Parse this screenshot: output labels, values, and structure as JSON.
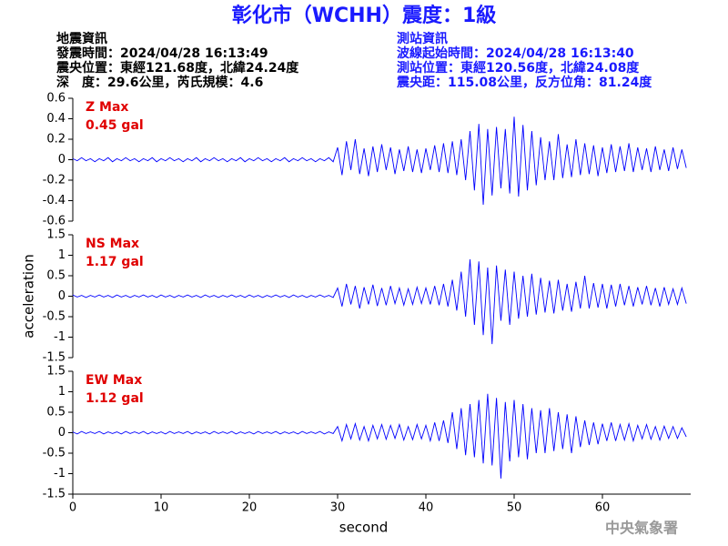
{
  "header": {
    "title": "彰化市（WCHH）震度：1級",
    "left": [
      "地震資訊",
      "發震時間：2024/04/28 16:13:49",
      "震央位置：東經121.68度，北緯24.24度",
      "深　度：29.6公里，芮氏規模：4.6"
    ],
    "right": [
      "測站資訊",
      "波線起始時間：2024/04/28 16:13:40",
      "測站位置：東經120.56度，北緯24.08度",
      "震央距：115.08公里，反方位角：81.24度"
    ]
  },
  "agency": "中央氣象署",
  "chart_data": [
    {
      "type": "line",
      "annotation": [
        "Z Max",
        "0.45 gal"
      ],
      "x": [
        0,
        0.5,
        1,
        1.5,
        2,
        2.5,
        3,
        3.5,
        4,
        4.5,
        5,
        5.5,
        6,
        6.5,
        7,
        7.5,
        8,
        8.5,
        9,
        9.5,
        10,
        10.5,
        11,
        11.5,
        12,
        12.5,
        13,
        13.5,
        14,
        14.5,
        15,
        15.5,
        16,
        16.5,
        17,
        17.5,
        18,
        18.5,
        19,
        19.5,
        20,
        20.5,
        21,
        21.5,
        22,
        22.5,
        23,
        23.5,
        24,
        24.5,
        25,
        25.5,
        26,
        26.5,
        27,
        27.5,
        28,
        28.5,
        29,
        29.5,
        30,
        30.5,
        31,
        31.5,
        32,
        32.5,
        33,
        33.5,
        34,
        34.5,
        35,
        35.5,
        36,
        36.5,
        37,
        37.5,
        38,
        38.5,
        39,
        39.5,
        40,
        40.5,
        41,
        41.5,
        42,
        42.5,
        43,
        43.5,
        44,
        44.5,
        45,
        45.5,
        46,
        46.5,
        47,
        47.5,
        48,
        48.5,
        49,
        49.5,
        50,
        50.5,
        51,
        51.5,
        52,
        52.5,
        53,
        53.5,
        54,
        54.5,
        55,
        55.5,
        56,
        56.5,
        57,
        57.5,
        58,
        58.5,
        59,
        59.5,
        60,
        60.5,
        61,
        61.5,
        62,
        62.5,
        63,
        63.5,
        64,
        64.5,
        65,
        65.5,
        66,
        66.5,
        67,
        67.5,
        68,
        68.5,
        69,
        69.5
      ],
      "series": [
        {
          "color": "#0000ff",
          "values": [
            0.01,
            -0.01,
            0.02,
            -0.01,
            0.01,
            -0.02,
            0.01,
            -0.01,
            0.02,
            -0.02,
            0.01,
            -0.01,
            0.02,
            -0.01,
            0.01,
            -0.02,
            0.01,
            -0.01,
            0.02,
            -0.02,
            0.01,
            -0.01,
            0.02,
            -0.01,
            0.01,
            -0.02,
            0.01,
            -0.01,
            0.02,
            -0.02,
            0.01,
            -0.01,
            0.02,
            -0.01,
            0.01,
            -0.02,
            0.01,
            -0.01,
            0.02,
            -0.02,
            0.01,
            -0.01,
            0.02,
            -0.01,
            0.01,
            -0.02,
            0.01,
            -0.01,
            0.02,
            -0.02,
            0.01,
            -0.01,
            0.02,
            -0.01,
            0.01,
            -0.02,
            0.01,
            -0.01,
            0.02,
            -0.02,
            0.12,
            -0.15,
            0.18,
            -0.1,
            0.2,
            -0.14,
            0.11,
            -0.16,
            0.13,
            -0.12,
            0.15,
            -0.1,
            0.12,
            -0.14,
            0.1,
            -0.11,
            0.13,
            -0.12,
            0.1,
            -0.13,
            0.11,
            -0.1,
            0.14,
            -0.12,
            0.16,
            -0.13,
            0.18,
            -0.15,
            0.2,
            -0.2,
            0.28,
            -0.3,
            0.35,
            -0.44,
            0.3,
            -0.35,
            0.32,
            -0.28,
            0.3,
            -0.33,
            0.42,
            -0.36,
            0.34,
            -0.3,
            0.28,
            -0.25,
            0.22,
            -0.2,
            0.18,
            -0.2,
            0.25,
            -0.18,
            0.15,
            -0.17,
            0.2,
            -0.15,
            0.16,
            -0.14,
            0.14,
            -0.16,
            0.12,
            -0.13,
            0.15,
            -0.12,
            0.13,
            -0.11,
            0.16,
            -0.12,
            0.12,
            -0.1,
            0.11,
            -0.12,
            0.13,
            -0.1,
            0.1,
            -0.11,
            0.12,
            -0.09,
            0.1,
            -0.08
          ]
        }
      ],
      "xlim": [
        0,
        70
      ],
      "ylim": [
        -0.6,
        0.6
      ],
      "yticks": [
        0.6,
        0.4,
        0.2,
        0,
        -0.2,
        -0.4,
        -0.6
      ]
    },
    {
      "type": "line",
      "annotation": [
        "NS Max",
        "1.17 gal"
      ],
      "ylabel": "acceleration",
      "x": [
        0,
        0.5,
        1,
        1.5,
        2,
        2.5,
        3,
        3.5,
        4,
        4.5,
        5,
        5.5,
        6,
        6.5,
        7,
        7.5,
        8,
        8.5,
        9,
        9.5,
        10,
        10.5,
        11,
        11.5,
        12,
        12.5,
        13,
        13.5,
        14,
        14.5,
        15,
        15.5,
        16,
        16.5,
        17,
        17.5,
        18,
        18.5,
        19,
        19.5,
        20,
        20.5,
        21,
        21.5,
        22,
        22.5,
        23,
        23.5,
        24,
        24.5,
        25,
        25.5,
        26,
        26.5,
        27,
        27.5,
        28,
        28.5,
        29,
        29.5,
        30,
        30.5,
        31,
        31.5,
        32,
        32.5,
        33,
        33.5,
        34,
        34.5,
        35,
        35.5,
        36,
        36.5,
        37,
        37.5,
        38,
        38.5,
        39,
        39.5,
        40,
        40.5,
        41,
        41.5,
        42,
        42.5,
        43,
        43.5,
        44,
        44.5,
        45,
        45.5,
        46,
        46.5,
        47,
        47.5,
        48,
        48.5,
        49,
        49.5,
        50,
        50.5,
        51,
        51.5,
        52,
        52.5,
        53,
        53.5,
        54,
        54.5,
        55,
        55.5,
        56,
        56.5,
        57,
        57.5,
        58,
        58.5,
        59,
        59.5,
        60,
        60.5,
        61,
        61.5,
        62,
        62.5,
        63,
        63.5,
        64,
        64.5,
        65,
        65.5,
        66,
        66.5,
        67,
        67.5,
        68,
        68.5,
        69,
        69.5
      ],
      "series": [
        {
          "color": "#0000ff",
          "values": [
            0.03,
            -0.02,
            0.02,
            -0.03,
            0.02,
            -0.02,
            0.03,
            -0.02,
            0.02,
            -0.03,
            0.03,
            -0.02,
            0.02,
            -0.03,
            0.02,
            -0.02,
            0.03,
            -0.02,
            0.02,
            -0.03,
            0.03,
            -0.02,
            0.02,
            -0.03,
            0.02,
            -0.02,
            0.03,
            -0.02,
            0.02,
            -0.03,
            0.03,
            -0.02,
            0.02,
            -0.03,
            0.02,
            -0.02,
            0.03,
            -0.02,
            0.02,
            -0.03,
            0.03,
            -0.02,
            0.02,
            -0.03,
            0.02,
            -0.02,
            0.03,
            -0.02,
            0.02,
            -0.03,
            0.03,
            -0.02,
            0.02,
            -0.03,
            0.02,
            -0.02,
            0.03,
            -0.02,
            0.02,
            -0.03,
            0.2,
            -0.25,
            0.3,
            -0.2,
            0.25,
            -0.3,
            0.22,
            -0.2,
            0.28,
            -0.24,
            0.2,
            -0.22,
            0.25,
            -0.18,
            0.2,
            -0.22,
            0.18,
            -0.2,
            0.22,
            -0.18,
            0.2,
            -0.2,
            0.25,
            -0.22,
            0.3,
            -0.25,
            0.4,
            -0.35,
            0.6,
            -0.5,
            0.9,
            -0.7,
            0.85,
            -0.95,
            0.7,
            -1.17,
            0.75,
            -0.6,
            0.65,
            -0.7,
            0.6,
            -0.55,
            0.5,
            -0.5,
            0.55,
            -0.45,
            0.45,
            -0.4,
            0.38,
            -0.42,
            0.4,
            -0.35,
            0.3,
            -0.38,
            0.35,
            -0.3,
            0.5,
            -0.3,
            0.32,
            -0.28,
            0.3,
            -0.3,
            0.28,
            -0.25,
            0.3,
            -0.22,
            0.25,
            -0.25,
            0.22,
            -0.2,
            0.25,
            -0.22,
            0.2,
            -0.25,
            0.22,
            -0.2,
            0.18,
            -0.2,
            0.2,
            -0.18
          ]
        }
      ],
      "xlim": [
        0,
        70
      ],
      "ylim": [
        -1.5,
        1.5
      ],
      "yticks": [
        1.5,
        1,
        0.5,
        0,
        -0.5,
        -1,
        -1.5
      ]
    },
    {
      "type": "line",
      "annotation": [
        "EW Max",
        "1.12 gal"
      ],
      "xlabel": "second",
      "x": [
        0,
        0.5,
        1,
        1.5,
        2,
        2.5,
        3,
        3.5,
        4,
        4.5,
        5,
        5.5,
        6,
        6.5,
        7,
        7.5,
        8,
        8.5,
        9,
        9.5,
        10,
        10.5,
        11,
        11.5,
        12,
        12.5,
        13,
        13.5,
        14,
        14.5,
        15,
        15.5,
        16,
        16.5,
        17,
        17.5,
        18,
        18.5,
        19,
        19.5,
        20,
        20.5,
        21,
        21.5,
        22,
        22.5,
        23,
        23.5,
        24,
        24.5,
        25,
        25.5,
        26,
        26.5,
        27,
        27.5,
        28,
        28.5,
        29,
        29.5,
        30,
        30.5,
        31,
        31.5,
        32,
        32.5,
        33,
        33.5,
        34,
        34.5,
        35,
        35.5,
        36,
        36.5,
        37,
        37.5,
        38,
        38.5,
        39,
        39.5,
        40,
        40.5,
        41,
        41.5,
        42,
        42.5,
        43,
        43.5,
        44,
        44.5,
        45,
        45.5,
        46,
        46.5,
        47,
        47.5,
        48,
        48.5,
        49,
        49.5,
        50,
        50.5,
        51,
        51.5,
        52,
        52.5,
        53,
        53.5,
        54,
        54.5,
        55,
        55.5,
        56,
        56.5,
        57,
        57.5,
        58,
        58.5,
        59,
        59.5,
        60,
        60.5,
        61,
        61.5,
        62,
        62.5,
        63,
        63.5,
        64,
        64.5,
        65,
        65.5,
        66,
        66.5,
        67,
        67.5,
        68,
        68.5,
        69,
        69.5
      ],
      "series": [
        {
          "color": "#0000ff",
          "values": [
            0.02,
            -0.03,
            0.03,
            -0.02,
            0.02,
            -0.02,
            0.03,
            -0.03,
            0.02,
            -0.02,
            0.02,
            -0.03,
            0.03,
            -0.02,
            0.02,
            -0.02,
            0.03,
            -0.03,
            0.02,
            -0.02,
            0.02,
            -0.03,
            0.03,
            -0.02,
            0.02,
            -0.02,
            0.03,
            -0.03,
            0.02,
            -0.02,
            0.02,
            -0.03,
            0.03,
            -0.02,
            0.02,
            -0.02,
            0.03,
            -0.03,
            0.02,
            -0.02,
            0.02,
            -0.03,
            0.03,
            -0.02,
            0.02,
            -0.02,
            0.03,
            -0.03,
            0.02,
            -0.02,
            0.02,
            -0.03,
            0.03,
            -0.02,
            0.02,
            -0.02,
            0.03,
            -0.03,
            0.02,
            -0.02,
            0.15,
            -0.2,
            0.2,
            -0.15,
            0.22,
            -0.18,
            0.15,
            -0.2,
            0.18,
            -0.15,
            0.2,
            -0.16,
            0.18,
            -0.14,
            0.2,
            -0.18,
            0.15,
            -0.17,
            0.2,
            -0.15,
            0.18,
            -0.2,
            0.25,
            -0.2,
            0.3,
            -0.25,
            0.5,
            -0.4,
            0.6,
            -0.55,
            0.7,
            -0.6,
            0.8,
            -0.75,
            0.95,
            -0.8,
            0.85,
            -1.12,
            0.75,
            -0.7,
            0.8,
            -0.6,
            0.7,
            -0.65,
            0.6,
            -0.5,
            0.55,
            -0.5,
            0.6,
            -0.45,
            0.5,
            -0.4,
            0.45,
            -0.5,
            0.4,
            -0.35,
            0.3,
            -0.3,
            0.25,
            -0.28,
            0.22,
            -0.2,
            0.25,
            -0.2,
            0.2,
            -0.18,
            0.22,
            -0.2,
            0.18,
            -0.15,
            0.2,
            -0.16,
            0.15,
            -0.18,
            0.16,
            -0.14,
            0.15,
            -0.14,
            0.12,
            -0.1
          ]
        }
      ],
      "xlim": [
        0,
        70
      ],
      "xticks": [
        0,
        10,
        20,
        30,
        40,
        50,
        60
      ],
      "ylim": [
        -1.5,
        1.5
      ],
      "yticks": [
        1.5,
        1,
        0.5,
        0,
        -0.5,
        -1,
        -1.5
      ]
    }
  ]
}
